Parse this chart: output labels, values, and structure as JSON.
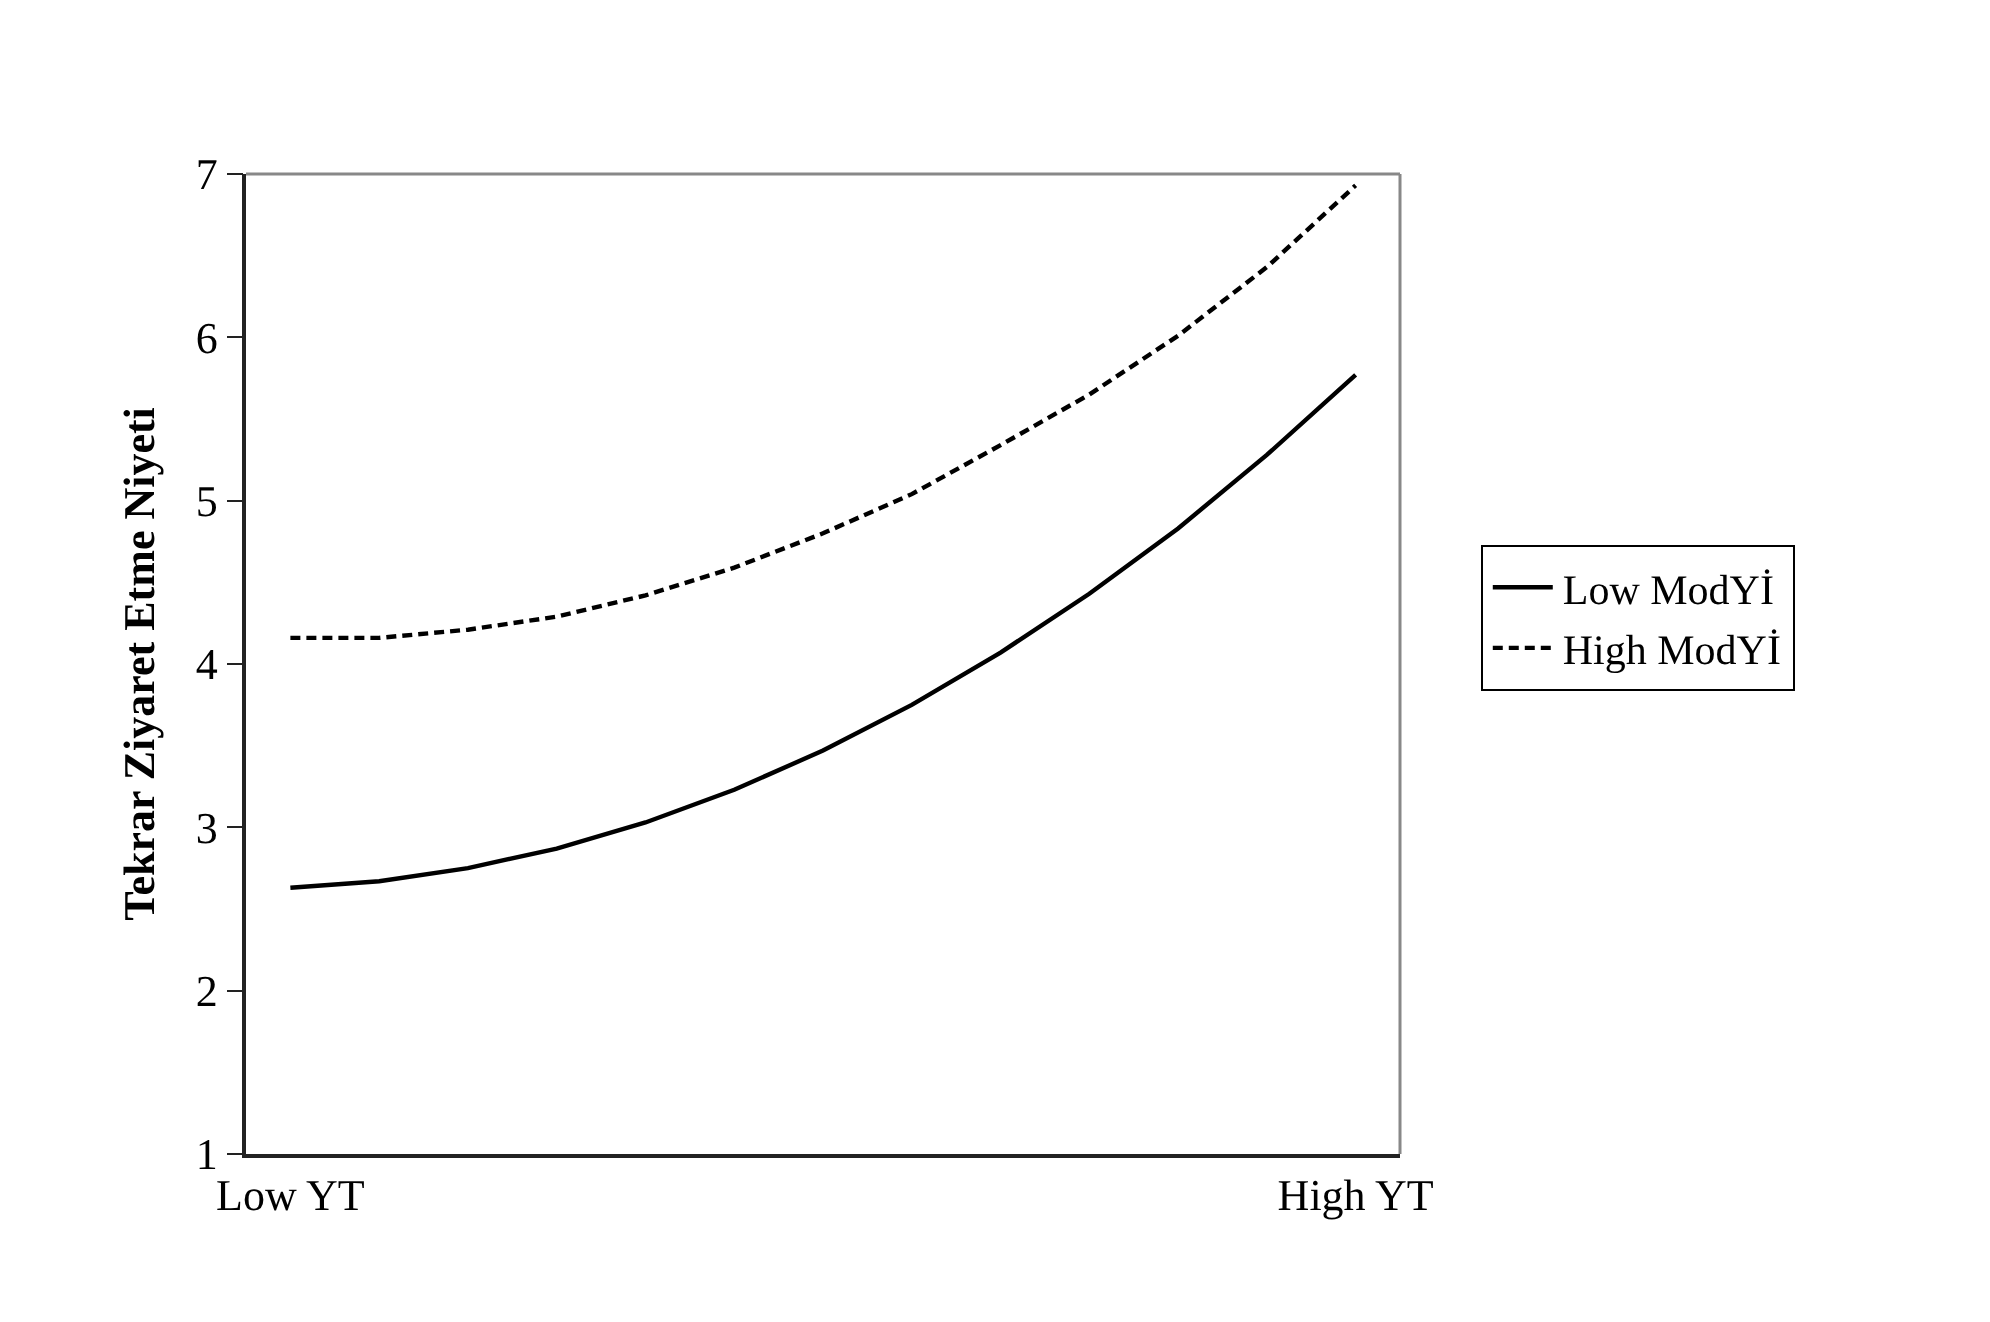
{
  "chart_data": {
    "type": "line",
    "ylabel": "Tekrar Ziyaret Etme Niyeti",
    "categories": [
      "Low YT",
      null,
      null,
      null,
      null,
      null,
      null,
      null,
      null,
      null,
      null,
      null,
      "High YT"
    ],
    "ylim": [
      1,
      7
    ],
    "yticks": [
      1,
      2,
      3,
      4,
      5,
      6,
      7
    ],
    "series": [
      {
        "name": "Low ModYİ",
        "color": "#000000",
        "line_style": "solid",
        "values": [
          2.63,
          2.67,
          2.75,
          2.87,
          3.03,
          3.23,
          3.47,
          3.75,
          4.07,
          4.43,
          4.83,
          5.28,
          5.77
        ]
      },
      {
        "name": "High ModYİ",
        "color": "#000000",
        "line_style": "dashed",
        "values": [
          4.16,
          4.16,
          4.21,
          4.29,
          4.42,
          4.59,
          4.8,
          5.04,
          5.34,
          5.65,
          6.01,
          6.43,
          6.93
        ]
      }
    ],
    "legend": "right",
    "marker": "none"
  }
}
